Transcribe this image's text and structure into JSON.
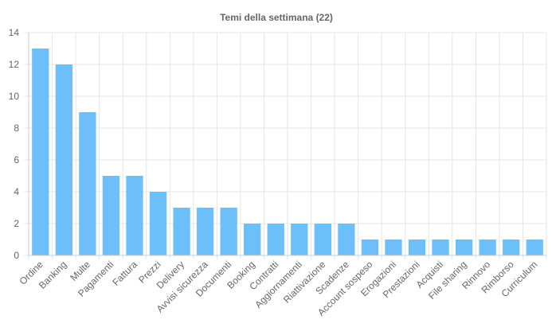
{
  "chart_data": {
    "type": "bar",
    "title": "Temi della settimana (22)",
    "xlabel": "",
    "ylabel": "",
    "ylim": [
      0,
      14
    ],
    "yticks": [
      0,
      2,
      4,
      6,
      8,
      10,
      12,
      14
    ],
    "grid": true,
    "legend": "none",
    "bar_color": "#6cbff9",
    "categories": [
      "Ordine",
      "Banking",
      "Multe",
      "Pagamenti",
      "Fattura",
      "Prezzi",
      "Delivery",
      "Avvisi sicurezza",
      "Documenti",
      "Booking",
      "Contratti",
      "Aggiornamenti",
      "Riattivazione",
      "Scadenze",
      "Account sospeso",
      "Erogazioni",
      "Prestazioni",
      "Acquisti",
      "File sharing",
      "Rinnovo",
      "Rimborso",
      "Curriculum"
    ],
    "values": [
      13,
      12,
      9,
      5,
      5,
      4,
      3,
      3,
      3,
      2,
      2,
      2,
      2,
      2,
      1,
      1,
      1,
      1,
      1,
      1,
      1,
      1
    ]
  }
}
